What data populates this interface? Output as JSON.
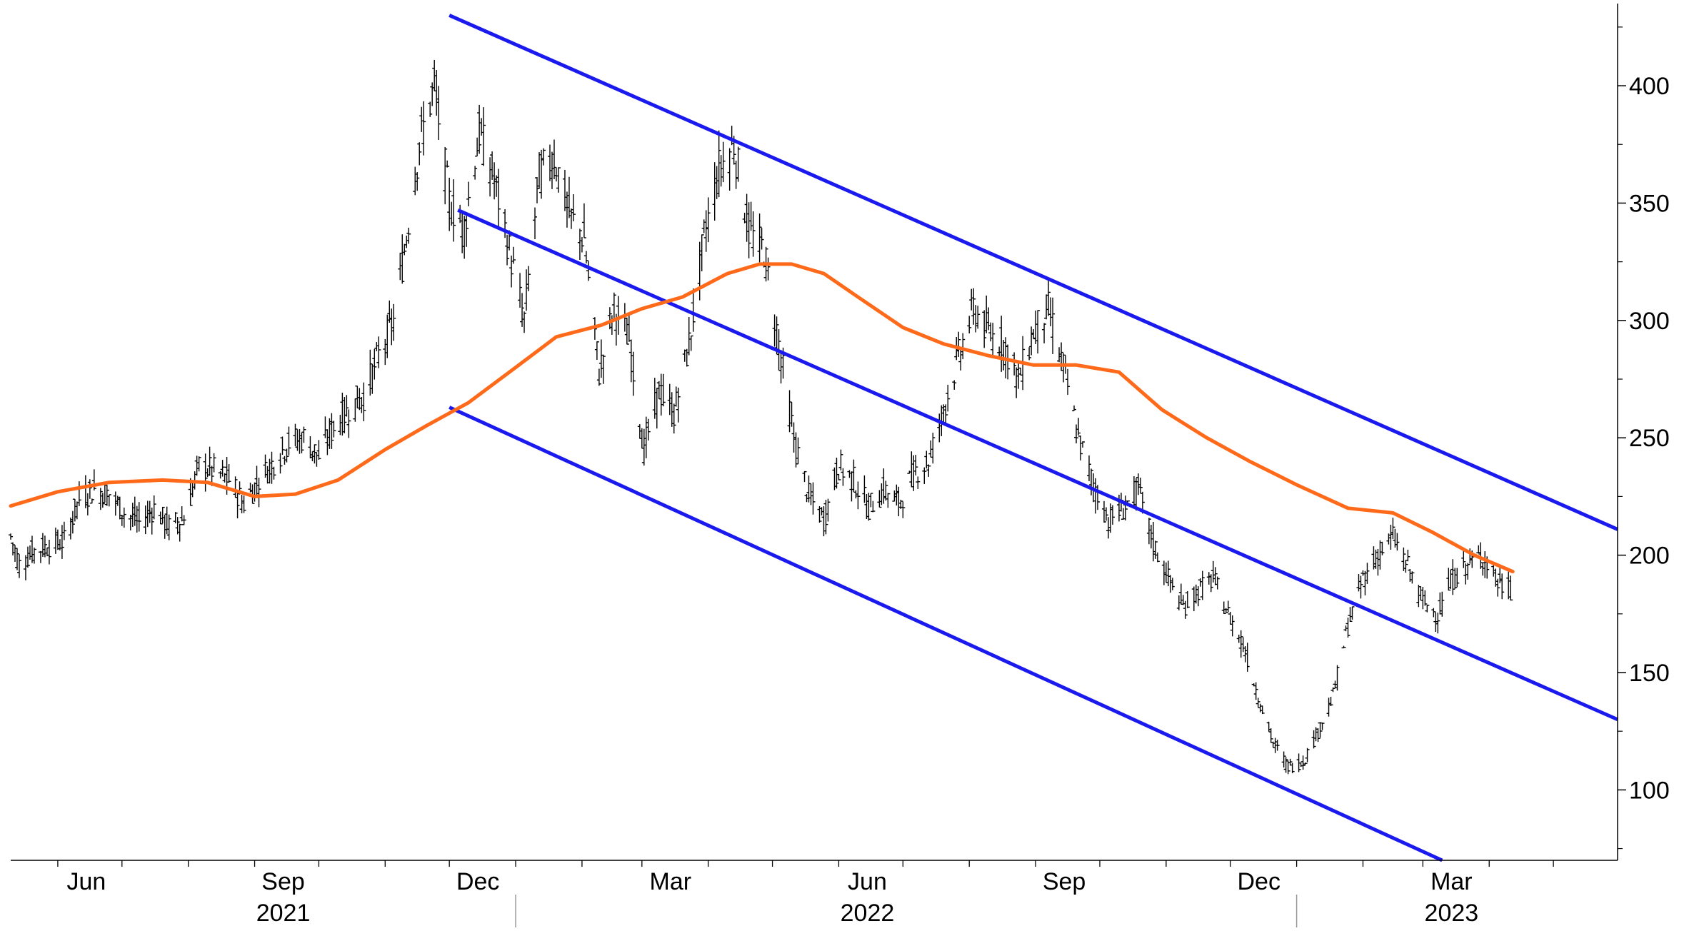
{
  "chart_data": {
    "type": "line",
    "title": "",
    "xlabel": "",
    "ylabel": "",
    "ylim": [
      70,
      435
    ],
    "xlim": [
      "2021-05-10",
      "2023-05-31"
    ],
    "y_axis_position": "right",
    "y_ticks": [
      100,
      150,
      200,
      250,
      300,
      350,
      400
    ],
    "x_ticks": [
      {
        "date": "2021-06-01",
        "label": "Jun"
      },
      {
        "date": "2021-09-01",
        "label": "Sep"
      },
      {
        "date": "2021-12-01",
        "label": "Dec"
      },
      {
        "date": "2022-03-01",
        "label": "Mar"
      },
      {
        "date": "2022-06-01",
        "label": "Jun"
      },
      {
        "date": "2022-09-01",
        "label": "Sep"
      },
      {
        "date": "2022-12-01",
        "label": "Dec"
      },
      {
        "date": "2023-03-01",
        "label": "Mar"
      }
    ],
    "year_labels": [
      {
        "date": "2021-09-01",
        "label": "2021"
      },
      {
        "date": "2022-06-01",
        "label": "2022"
      },
      {
        "date": "2023-03-01",
        "label": "2023"
      }
    ],
    "year_separators": [
      "2022-01-01",
      "2023-01-01"
    ],
    "grid": false,
    "colors": {
      "price": "#000000",
      "moving_average": "#ff6a1a",
      "channel": "#1a1aee"
    },
    "series": [
      {
        "style": "ohlc-bars",
        "points": [
          [
            "2021-05-10",
            208
          ],
          [
            "2021-05-14",
            196
          ],
          [
            "2021-05-21",
            202
          ],
          [
            "2021-05-28",
            204
          ],
          [
            "2021-06-04",
            206
          ],
          [
            "2021-06-11",
            224
          ],
          [
            "2021-06-18",
            228
          ],
          [
            "2021-06-25",
            226
          ],
          [
            "2021-07-02",
            218
          ],
          [
            "2021-07-09",
            214
          ],
          [
            "2021-07-16",
            220
          ],
          [
            "2021-07-23",
            212
          ],
          [
            "2021-07-30",
            216
          ],
          [
            "2021-08-06",
            238
          ],
          [
            "2021-08-13",
            236
          ],
          [
            "2021-08-20",
            232
          ],
          [
            "2021-08-27",
            222
          ],
          [
            "2021-09-03",
            232
          ],
          [
            "2021-09-10",
            240
          ],
          [
            "2021-09-17",
            248
          ],
          [
            "2021-09-24",
            250
          ],
          [
            "2021-10-01",
            242
          ],
          [
            "2021-10-08",
            255
          ],
          [
            "2021-10-15",
            262
          ],
          [
            "2021-10-22",
            268
          ],
          [
            "2021-10-29",
            285
          ],
          [
            "2021-11-05",
            300
          ],
          [
            "2021-11-10",
            330
          ],
          [
            "2021-11-17",
            375
          ],
          [
            "2021-11-24",
            400
          ],
          [
            "2021-12-01",
            350
          ],
          [
            "2021-12-08",
            340
          ],
          [
            "2021-12-15",
            380
          ],
          [
            "2021-12-22",
            360
          ],
          [
            "2021-12-29",
            330
          ],
          [
            "2022-01-05",
            300
          ],
          [
            "2022-01-12",
            362
          ],
          [
            "2022-01-19",
            370
          ],
          [
            "2022-01-26",
            345
          ],
          [
            "2022-02-02",
            335
          ],
          [
            "2022-02-09",
            278
          ],
          [
            "2022-02-16",
            305
          ],
          [
            "2022-02-23",
            292
          ],
          [
            "2022-03-02",
            245
          ],
          [
            "2022-03-09",
            270
          ],
          [
            "2022-03-16",
            260
          ],
          [
            "2022-03-23",
            290
          ],
          [
            "2022-03-30",
            335
          ],
          [
            "2022-04-06",
            365
          ],
          [
            "2022-04-13",
            375
          ],
          [
            "2022-04-20",
            338
          ],
          [
            "2022-04-27",
            330
          ],
          [
            "2022-05-04",
            290
          ],
          [
            "2022-05-11",
            250
          ],
          [
            "2022-05-18",
            225
          ],
          [
            "2022-05-25",
            215
          ],
          [
            "2022-06-01",
            238
          ],
          [
            "2022-06-08",
            232
          ],
          [
            "2022-06-15",
            220
          ],
          [
            "2022-06-22",
            228
          ],
          [
            "2022-06-29",
            222
          ],
          [
            "2022-07-06",
            235
          ],
          [
            "2022-07-13",
            240
          ],
          [
            "2022-07-20",
            262
          ],
          [
            "2022-07-27",
            285
          ],
          [
            "2022-08-03",
            305
          ],
          [
            "2022-08-10",
            295
          ],
          [
            "2022-08-17",
            290
          ],
          [
            "2022-08-24",
            275
          ],
          [
            "2022-08-31",
            295
          ],
          [
            "2022-09-07",
            305
          ],
          [
            "2022-09-14",
            280
          ],
          [
            "2022-09-21",
            250
          ],
          [
            "2022-09-28",
            230
          ],
          [
            "2022-10-05",
            215
          ],
          [
            "2022-10-12",
            220
          ],
          [
            "2022-10-19",
            228
          ],
          [
            "2022-10-26",
            205
          ],
          [
            "2022-11-02",
            190
          ],
          [
            "2022-11-09",
            178
          ],
          [
            "2022-11-16",
            185
          ],
          [
            "2022-11-23",
            190
          ],
          [
            "2022-11-30",
            175
          ],
          [
            "2022-12-07",
            162
          ],
          [
            "2022-12-14",
            140
          ],
          [
            "2022-12-21",
            120
          ],
          [
            "2022-12-28",
            110
          ],
          [
            "2023-01-04",
            112
          ],
          [
            "2023-01-11",
            125
          ],
          [
            "2023-01-18",
            140
          ],
          [
            "2023-01-25",
            170
          ],
          [
            "2023-02-01",
            190
          ],
          [
            "2023-02-08",
            200
          ],
          [
            "2023-02-15",
            208
          ],
          [
            "2023-02-22",
            195
          ],
          [
            "2023-03-01",
            180
          ],
          [
            "2023-03-08",
            175
          ],
          [
            "2023-03-15",
            190
          ],
          [
            "2023-03-22",
            196
          ],
          [
            "2023-03-29",
            200
          ],
          [
            "2023-04-05",
            188
          ],
          [
            "2023-04-12",
            185
          ]
        ]
      },
      {
        "style": "line",
        "points": [
          [
            "2021-05-10",
            221
          ],
          [
            "2021-06-01",
            227
          ],
          [
            "2021-06-25",
            231
          ],
          [
            "2021-07-20",
            232
          ],
          [
            "2021-08-10",
            231
          ],
          [
            "2021-09-01",
            225
          ],
          [
            "2021-09-20",
            226
          ],
          [
            "2021-10-10",
            232
          ],
          [
            "2021-11-01",
            245
          ],
          [
            "2021-11-20",
            255
          ],
          [
            "2021-12-10",
            265
          ],
          [
            "2022-01-01",
            280
          ],
          [
            "2022-01-20",
            293
          ],
          [
            "2022-02-10",
            298
          ],
          [
            "2022-03-01",
            305
          ],
          [
            "2022-03-20",
            310
          ],
          [
            "2022-04-10",
            320
          ],
          [
            "2022-04-25",
            324
          ],
          [
            "2022-05-10",
            324
          ],
          [
            "2022-05-25",
            320
          ],
          [
            "2022-06-10",
            310
          ],
          [
            "2022-07-01",
            297
          ],
          [
            "2022-07-20",
            290
          ],
          [
            "2022-08-10",
            285
          ],
          [
            "2022-08-31",
            281
          ],
          [
            "2022-09-20",
            281
          ],
          [
            "2022-10-10",
            278
          ],
          [
            "2022-10-30",
            262
          ],
          [
            "2022-11-20",
            250
          ],
          [
            "2022-12-10",
            240
          ],
          [
            "2023-01-01",
            230
          ],
          [
            "2023-01-25",
            220
          ],
          [
            "2023-02-15",
            218
          ],
          [
            "2023-03-05",
            210
          ],
          [
            "2023-03-25",
            200
          ],
          [
            "2023-04-12",
            193
          ]
        ]
      }
    ],
    "trend_channel": [
      {
        "name": "upper",
        "from": [
          "2021-12-01",
          430
        ],
        "to": [
          "2023-05-31",
          211
        ]
      },
      {
        "name": "middle",
        "from": [
          "2021-12-05",
          347
        ],
        "to": [
          "2023-05-31",
          130
        ]
      },
      {
        "name": "lower",
        "from": [
          "2021-12-01",
          263
        ],
        "to": [
          "2023-03-10",
          70
        ]
      }
    ]
  }
}
